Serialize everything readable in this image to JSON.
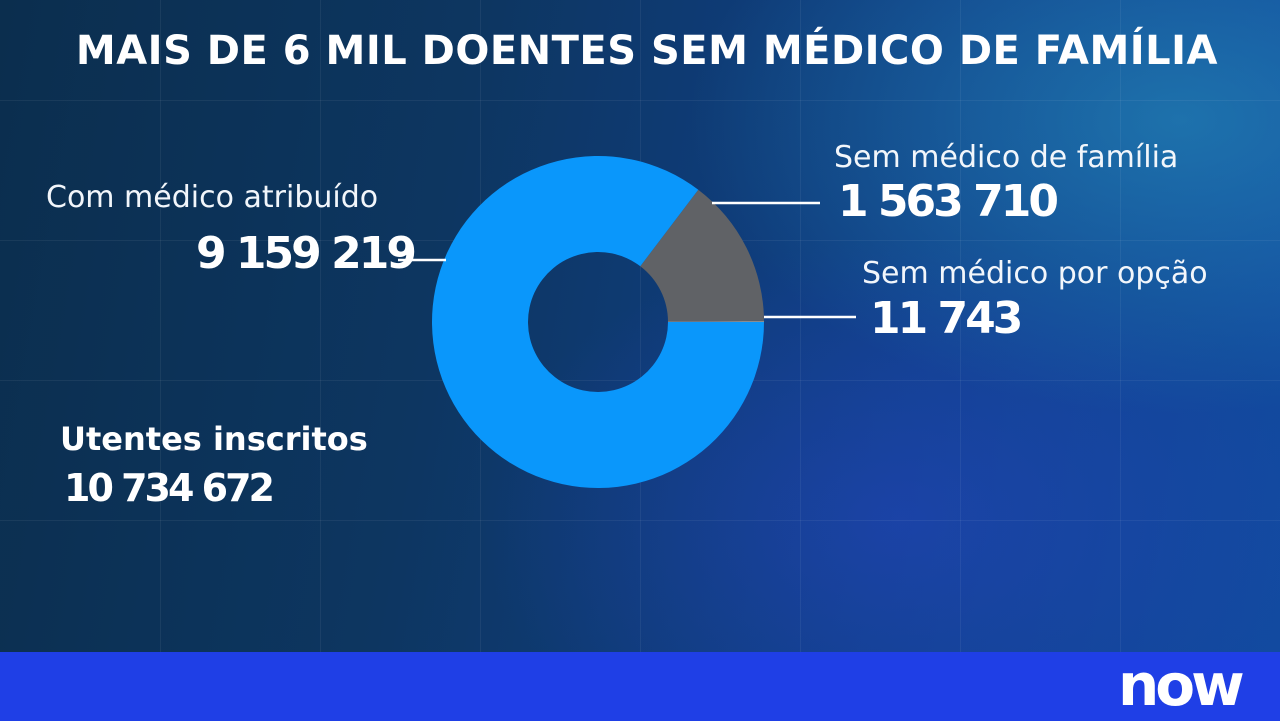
{
  "title": "MAIS DE 6 MIL DOENTES SEM MÉDICO DE FAMÍLIA",
  "chart_data": {
    "type": "pie",
    "title": "MAIS DE 6 MIL DOENTES SEM MÉDICO DE FAMÍLIA",
    "slices": [
      {
        "label": "Com médico atribuído",
        "value": 9159219,
        "value_text": "9 159 219",
        "color": "#0a97fb"
      },
      {
        "label": "Sem médico de família",
        "value": 1563710,
        "value_text": "1 563 710",
        "color": "#606266"
      },
      {
        "label": "Sem médico por opção",
        "value": 11743,
        "value_text": "11 743",
        "color": "#8a8c90"
      }
    ],
    "total": {
      "label": "Utentes inscritos",
      "value": 10734672,
      "value_text": "10 734 672"
    }
  },
  "branding": {
    "logo_text": "now"
  },
  "colors": {
    "footer": "#1f3fe6",
    "donut_main": "#0a97fb",
    "donut_secondary": "#606266"
  }
}
